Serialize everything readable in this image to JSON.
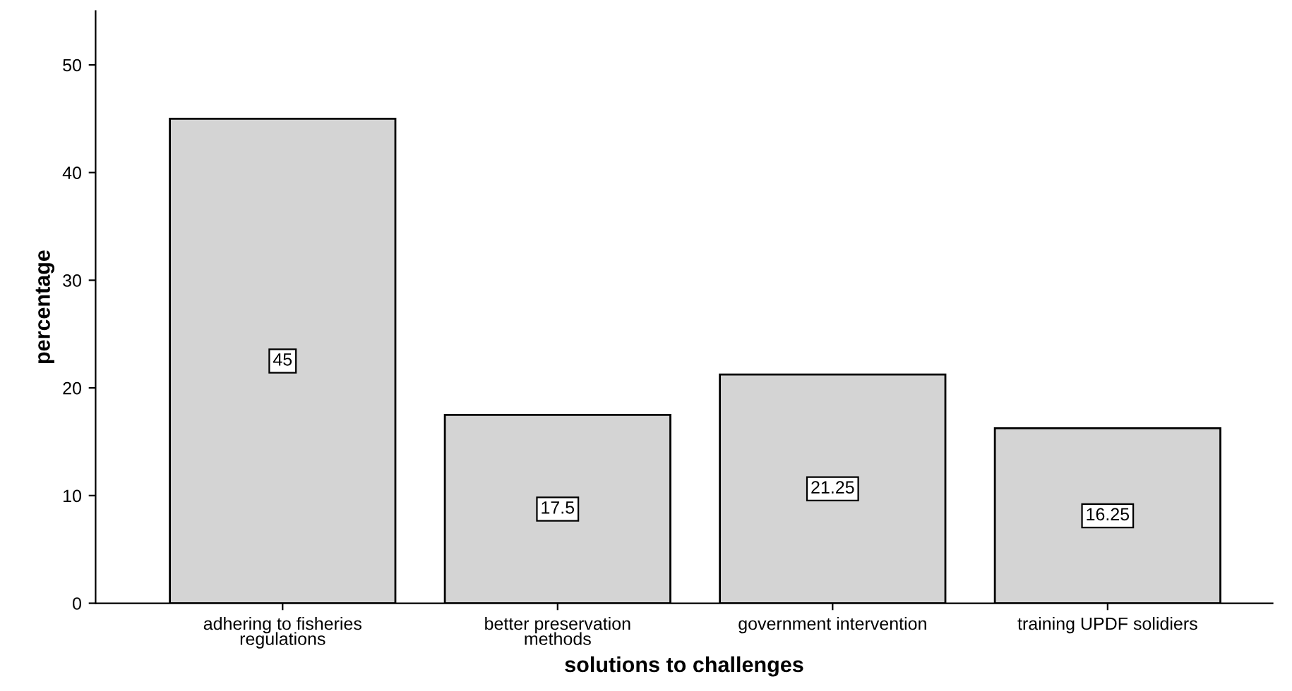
{
  "chart_data": {
    "type": "bar",
    "xlabel": "solutions to challenges",
    "ylabel": "percentage",
    "categories": [
      "adhering to fisheries\nregulations",
      "better preservation\nmethods",
      "government intervention",
      "training UPDF solidiers"
    ],
    "values": [
      45,
      17.5,
      21.25,
      16.25
    ],
    "color": "#d4d4d4",
    "ylim": [
      0,
      55
    ],
    "yticks": [
      0,
      10,
      20,
      30,
      40,
      50
    ],
    "grid": false,
    "data_labels": true
  }
}
